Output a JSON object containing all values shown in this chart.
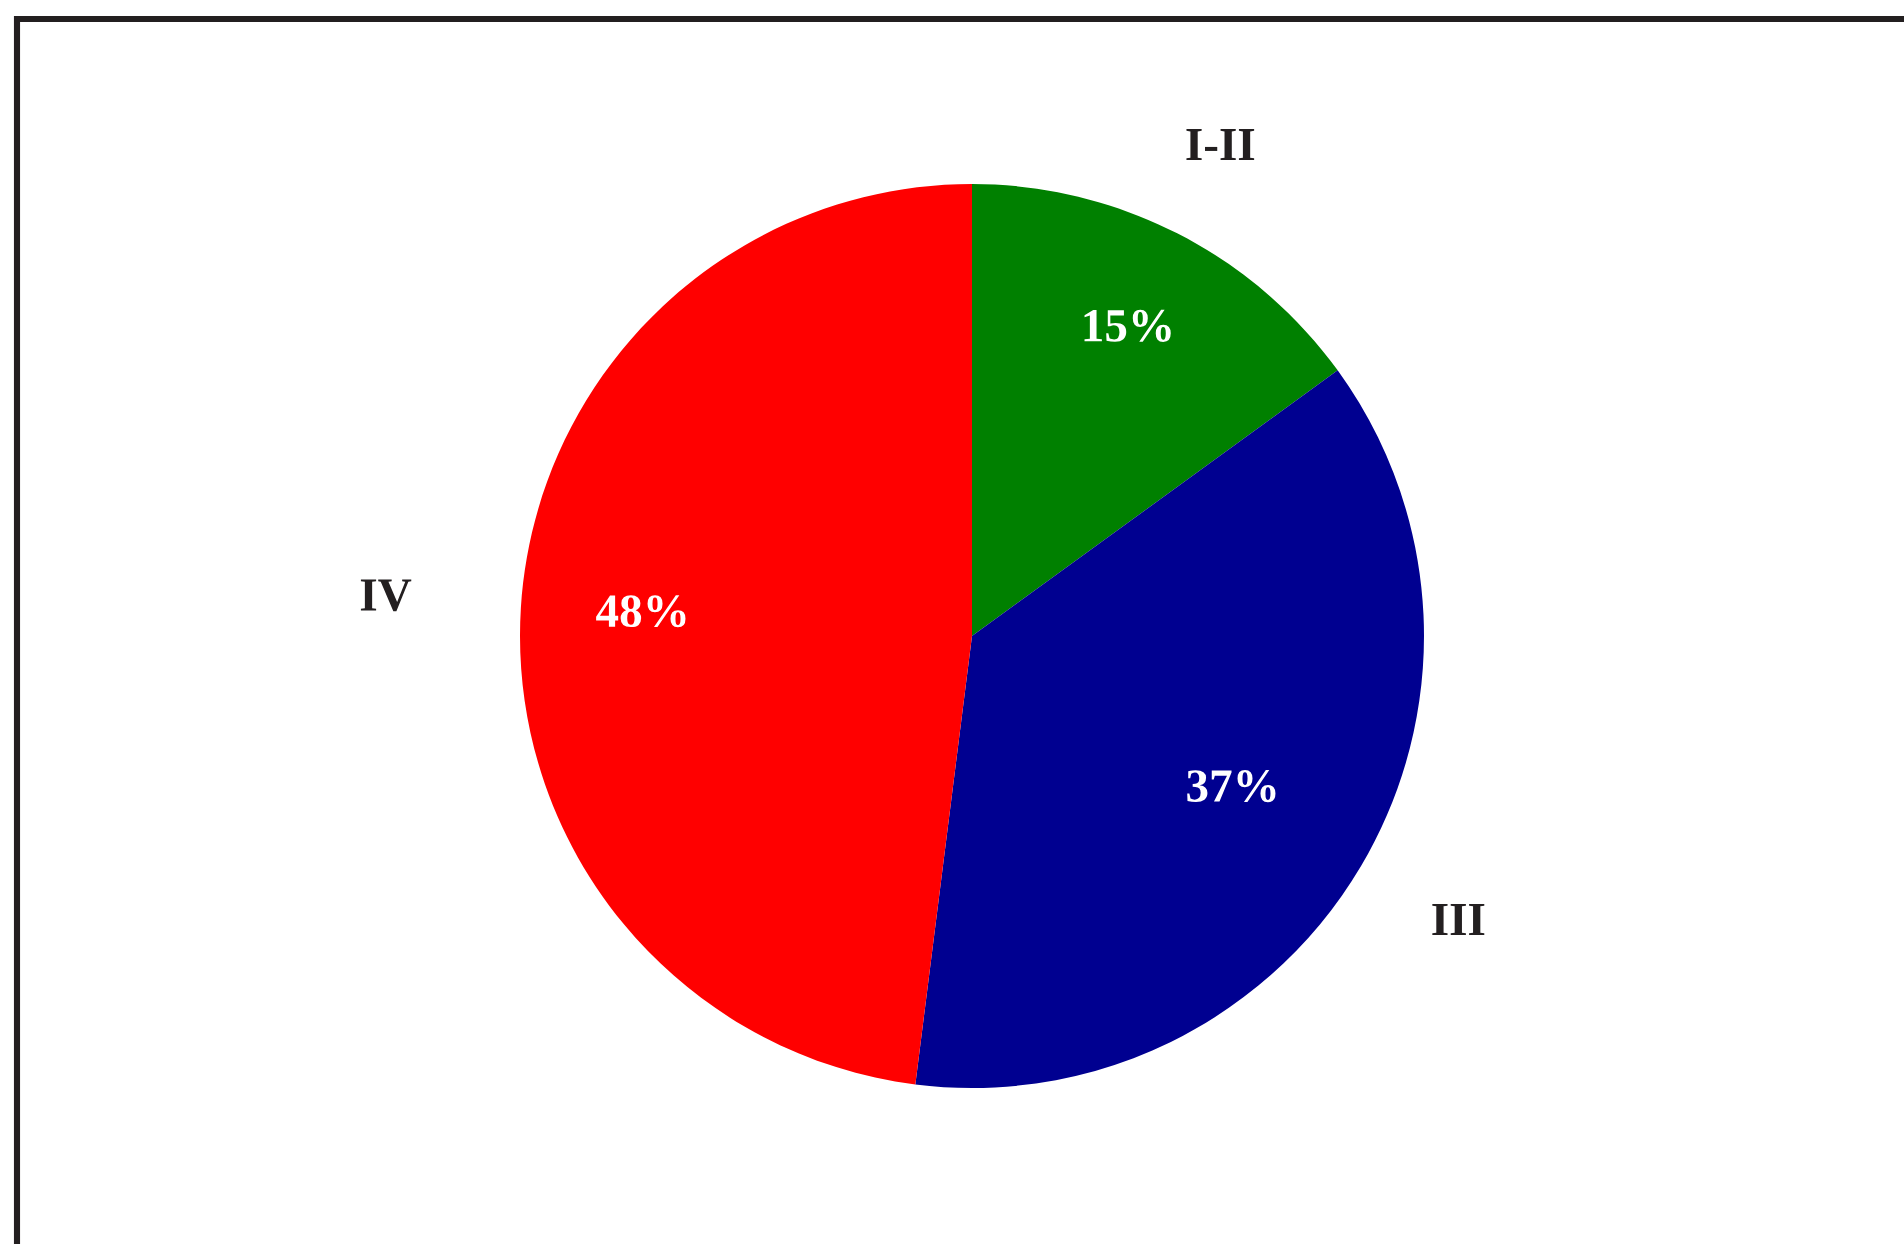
{
  "chart_data": {
    "type": "pie",
    "categories": [
      "I-II",
      "III",
      "IV"
    ],
    "values": [
      15,
      37,
      48
    ],
    "colors": [
      "#008000",
      "#000090",
      "#ff0000"
    ],
    "value_labels": [
      "15%",
      "37%",
      "48%"
    ]
  }
}
